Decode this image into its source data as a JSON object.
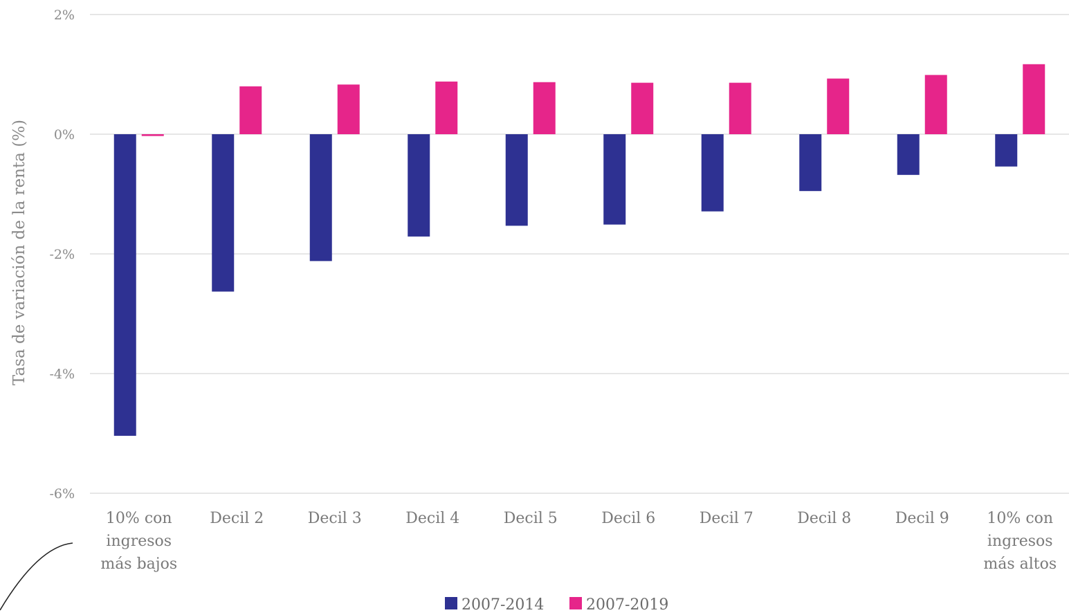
{
  "chart_data": {
    "type": "bar",
    "title": "",
    "xlabel": "",
    "ylabel": "Tasa de variación de la renta (%)",
    "ylim": [
      -6,
      2
    ],
    "yticks": [
      2,
      0,
      -2,
      -4,
      -6
    ],
    "ytick_labels": [
      "2%",
      "0%",
      "-2%",
      "-4%",
      "-6%"
    ],
    "grid": true,
    "legend_position": "bottom",
    "categories": [
      "10% con ingresos más bajos",
      "Decil 2",
      "Decil 3",
      "Decil 4",
      "Decil 5",
      "Decil 6",
      "Decil 7",
      "Decil 8",
      "Decil 9",
      "10% con ingresos más altos"
    ],
    "category_lines": [
      [
        "10% con",
        "ingresos",
        "más bajos"
      ],
      [
        "Decil 2"
      ],
      [
        "Decil 3"
      ],
      [
        "Decil 4"
      ],
      [
        "Decil 5"
      ],
      [
        "Decil 6"
      ],
      [
        "Decil 7"
      ],
      [
        "Decil 8"
      ],
      [
        "Decil 9"
      ],
      [
        "10% con",
        "ingresos",
        "más altos"
      ]
    ],
    "series": [
      {
        "name": "2007-2014",
        "color": "#2e3192",
        "values": [
          -5.04,
          -2.63,
          -2.12,
          -1.71,
          -1.53,
          -1.51,
          -1.29,
          -0.95,
          -0.68,
          -0.54
        ]
      },
      {
        "name": "2007-2019",
        "color": "#e6258a",
        "values": [
          -0.03,
          0.8,
          0.83,
          0.88,
          0.87,
          0.86,
          0.86,
          0.93,
          0.99,
          1.17
        ]
      }
    ]
  }
}
